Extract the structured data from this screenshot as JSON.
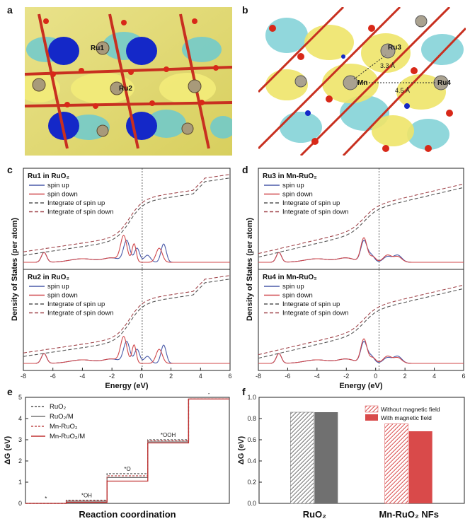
{
  "panels": {
    "a": {
      "label": "a",
      "atoms": [
        "Ru1",
        "Ru2"
      ]
    },
    "b": {
      "label": "b",
      "atoms": [
        "Ru3",
        "Mn",
        "Ru4"
      ],
      "distances": [
        "3.3 Å",
        "4.5 Å"
      ]
    },
    "c": {
      "label": "c"
    },
    "d": {
      "label": "d"
    },
    "e": {
      "label": "e"
    },
    "f": {
      "label": "f"
    }
  },
  "dos": {
    "ylabel": "Density of States (per atom)",
    "xlabel": "Energy (eV)",
    "xticks": [
      "-8",
      "-6",
      "-4",
      "-2",
      "0",
      "2",
      "4",
      "6"
    ],
    "legend": [
      "spin up",
      "spin down",
      "Integrate of spin up",
      "Integrate of spin down"
    ],
    "colors": {
      "up": "#4a5aa8",
      "down": "#d0474a",
      "int_up": "#555555",
      "int_down": "#a0444a"
    },
    "subplots": [
      {
        "title": "Ru1 in RuO₂"
      },
      {
        "title": "Ru2 in RuO₂"
      },
      {
        "title": "Ru3 in Mn-RuO₂"
      },
      {
        "title": "Ru4 in Mn-RuO₂"
      }
    ]
  },
  "chart_data": [
    {
      "type": "line",
      "panel": "e",
      "ylabel": "ΔG (eV)",
      "xlabel": "Reaction coordination",
      "ylim": [
        0,
        5
      ],
      "yticks": [
        0,
        1,
        2,
        3,
        4,
        5
      ],
      "steps": [
        "*",
        "*OH",
        "*O",
        "*OOH",
        "*"
      ],
      "series": [
        {
          "name": "RuO₂",
          "style": "dashed",
          "color": "#555555",
          "values": [
            0,
            0.15,
            1.4,
            3.0,
            4.92
          ]
        },
        {
          "name": "RuO₂/M",
          "style": "solid",
          "color": "#777777",
          "values": [
            0,
            0.1,
            1.22,
            2.9,
            4.92
          ]
        },
        {
          "name": "Mn-RuO₂",
          "style": "dashed",
          "color": "#c05050",
          "values": [
            0,
            0.12,
            1.3,
            2.95,
            4.92
          ]
        },
        {
          "name": "Mn-RuO₂/M",
          "style": "solid",
          "color": "#c03030",
          "values": [
            0,
            0.05,
            1.05,
            2.85,
            4.92
          ]
        }
      ]
    },
    {
      "type": "bar",
      "panel": "f",
      "ylabel": "ΔG (eV)",
      "ylim": [
        0,
        1.0
      ],
      "yticks": [
        "0.0",
        "0.2",
        "0.4",
        "0.6",
        "0.8",
        "1.0"
      ],
      "categories": [
        "RuO₂",
        "Mn-RuO₂ NFs"
      ],
      "series": [
        {
          "name": "Without magnetic field",
          "values": [
            0.86,
            0.75
          ]
        },
        {
          "name": "With magnetic field",
          "values": [
            0.86,
            0.68
          ]
        }
      ],
      "colors": {
        "ruo2": "#707070",
        "mn": "#d94a4a"
      }
    }
  ]
}
